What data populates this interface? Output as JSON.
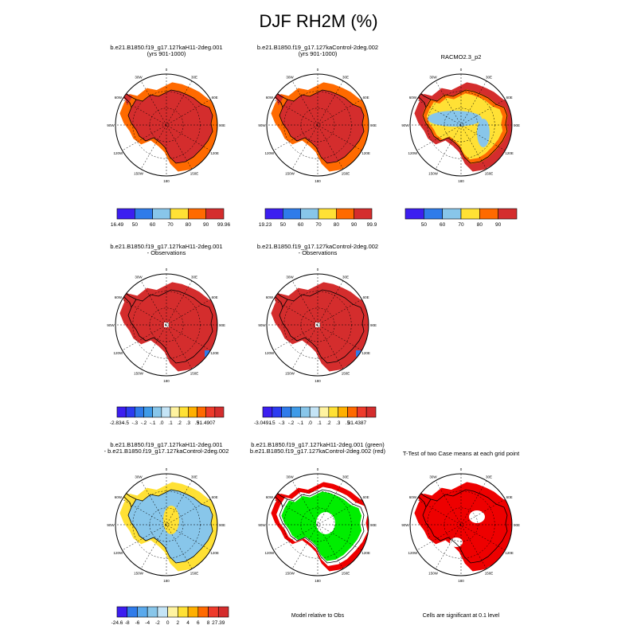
{
  "title": "DJF RH2M (%)",
  "colors": {
    "land_high": "#d42d2d",
    "land_mid": "#ff6a00",
    "yellow": "#ffe135",
    "light_blue": "#88c6ea",
    "ocean": "#ffffff",
    "sig": "#ee0000",
    "green": "#00ee00"
  },
  "panels": [
    {
      "id": "p1",
      "title": [
        "b.e21.B1850.f19_g17.127kaH11-2deg.001",
        "(yrs 901-1000)"
      ],
      "colorbar": {
        "colors": [
          "#3c1ef0",
          "#2f7bea",
          "#88c6ea",
          "#ffe135",
          "#ff6a00",
          "#d42d2d"
        ],
        "labels": [
          "16.49",
          "50",
          "60",
          "70",
          "80",
          "90",
          "99.96"
        ]
      }
    },
    {
      "id": "p2",
      "title": [
        "b.e21.B1850.f19_g17.127kaControl-2deg.002",
        "(yrs 901-1000)"
      ],
      "colorbar": {
        "colors": [
          "#3c1ef0",
          "#2f7bea",
          "#88c6ea",
          "#ffe135",
          "#ff6a00",
          "#d42d2d"
        ],
        "labels": [
          "19.23",
          "50",
          "60",
          "70",
          "80",
          "90",
          "99.9"
        ]
      }
    },
    {
      "id": "p3",
      "title": [
        "RACMO2.3_p2"
      ],
      "colorbar": {
        "colors": [
          "#3c1ef0",
          "#2f7bea",
          "#88c6ea",
          "#ffe135",
          "#ff6a00",
          "#d42d2d"
        ],
        "labels": [
          "",
          "50",
          "60",
          "70",
          "80",
          "90",
          ""
        ]
      }
    },
    {
      "id": "p4",
      "title": [
        "b.e21.B1850.f19_g17.127kaH11-2deg.001",
        "- Observations"
      ],
      "colorbar": {
        "colors": [
          "#3c1ef0",
          "#2b3bf0",
          "#2f7bea",
          "#3f9be8",
          "#88c6ea",
          "#c4e4f6",
          "#fff3a0",
          "#ffe135",
          "#ffb000",
          "#ff6a00",
          "#ee3b2b",
          "#d42d2d"
        ],
        "labels": [
          "-2.834",
          "-.5",
          "-.3",
          "-.2",
          "-.1",
          ".0",
          ".1",
          ".2",
          ".3",
          ".5",
          "31.4907"
        ]
      }
    },
    {
      "id": "p5",
      "title": [
        "b.e21.B1850.f19_g17.127kaControl-2deg.002",
        "- Observations"
      ],
      "colorbar": {
        "colors": [
          "#3c1ef0",
          "#2b3bf0",
          "#2f7bea",
          "#3f9be8",
          "#88c6ea",
          "#c4e4f6",
          "#fff3a0",
          "#ffe135",
          "#ffb000",
          "#ff6a00",
          "#ee3b2b",
          "#d42d2d"
        ],
        "labels": [
          "-3.0491",
          "-.5",
          "-.3",
          "-.2",
          "-.1",
          ".0",
          ".1",
          ".2",
          ".3",
          ".5",
          "31.4387"
        ]
      }
    },
    {
      "id": "p6",
      "title": [
        "b.e21.B1850.f19_g17.127kaH11-2deg.001",
        "- b.e21.B1850.f19_g17.127kaControl-2deg.002"
      ],
      "colorbar": {
        "colors": [
          "#3c1ef0",
          "#2f7bea",
          "#5aa9ec",
          "#88c6ea",
          "#c4e4f6",
          "#fff3a0",
          "#ffe135",
          "#ffb000",
          "#ff6a00",
          "#ee3b2b",
          "#d42d2d"
        ],
        "labels": [
          "-24.6",
          "-8",
          "-6",
          "-4",
          "-2",
          "0",
          "2",
          "4",
          "6",
          "8",
          "27.39"
        ]
      }
    },
    {
      "id": "p7",
      "title": [
        "b.e21.B1850.f19_g17.127kaH11-2deg.001 (green)",
        "b.e21.B1850.f19_g17.127kaControl-2deg.002 (red)"
      ],
      "footer": "Model relative to Obs"
    },
    {
      "id": "p8",
      "title": [
        "T-Test of two Case means at each grid point"
      ],
      "footer": "Cells are significant at 0.1 level"
    }
  ],
  "map_labels": {
    "lon_top": "0",
    "lon_left": "90W",
    "lon_right": "90E",
    "lon_bottom": "180",
    "lon_ul": "60W",
    "lon_ur": "60E",
    "lon_ll": "120W",
    "lon_lr": "120E",
    "lon_ul2": "30W",
    "lon_ur2": "30E",
    "lon_ll2": "150W",
    "lon_lr2": "150E"
  },
  "chart_data": [
    {
      "type": "heatmap",
      "title": "b.e21.B1850.f19_g17.127kaH11-2deg.001 (yrs 901-1000)",
      "series": [
        {
          "name": "RH2M",
          "range": [
            16.49,
            99.96
          ]
        }
      ]
    },
    {
      "type": "heatmap",
      "title": "b.e21.B1850.f19_g17.127kaControl-2deg.002 (yrs 901-1000)",
      "series": [
        {
          "name": "RH2M",
          "range": [
            19.23,
            99.9
          ]
        }
      ]
    },
    {
      "type": "heatmap",
      "title": "RACMO2.3_p2",
      "series": [
        {
          "name": "RH2M",
          "levels": [
            50,
            60,
            70,
            80,
            90
          ]
        }
      ]
    },
    {
      "type": "heatmap",
      "title": "b.e21.B1850.f19_g17.127kaH11-2deg.001 - Observations",
      "series": [
        {
          "name": "diff",
          "range": [
            -2.834,
            31.4907
          ]
        }
      ]
    },
    {
      "type": "heatmap",
      "title": "b.e21.B1850.f19_g17.127kaControl-2deg.002 - Observations",
      "series": [
        {
          "name": "diff",
          "range": [
            -3.0491,
            31.4387
          ]
        }
      ]
    },
    {
      "type": "heatmap",
      "title": "b.e21.B1850.f19_g17.127kaH11-2deg.001 - b.e21.B1850.f19_g17.127kaControl-2deg.002",
      "series": [
        {
          "name": "diff",
          "range": [
            -24.6,
            27.39
          ]
        }
      ]
    },
    {
      "type": "heatmap",
      "title": "Model relative to Obs"
    },
    {
      "type": "heatmap",
      "title": "T-Test of two Case means at each grid point"
    }
  ]
}
